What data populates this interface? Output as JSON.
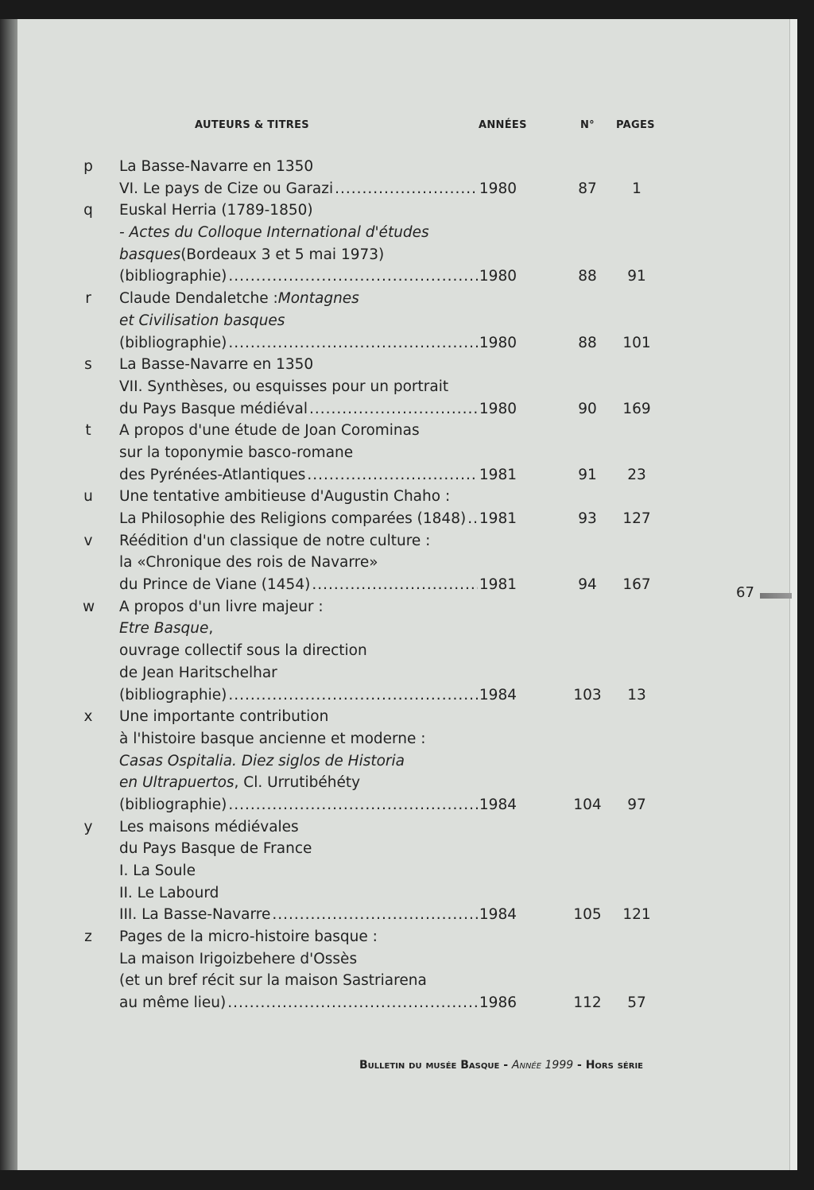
{
  "header": {
    "authors_titles": "AUTEURS & TITRES",
    "years": "ANNÉES",
    "number": "N°",
    "pages": "PAGES"
  },
  "entries": [
    {
      "letter": "p",
      "lines": [
        [
          {
            "t": "La Basse-Navarre en 1350"
          }
        ],
        [
          {
            "t": "VI. Le pays de Cize ou Garazi"
          }
        ]
      ],
      "year": "1980",
      "no": "87",
      "pages": "1"
    },
    {
      "letter": "q",
      "lines": [
        [
          {
            "t": "Euskal Herria (1789-1850)"
          }
        ],
        [
          {
            "t": "- Actes du Colloque International d'études",
            "i": true
          }
        ],
        [
          {
            "t": "basques",
            "i": true
          },
          {
            "t": " (Bordeaux 3 et 5 mai 1973)"
          }
        ],
        [
          {
            "t": "(bibliographie)"
          }
        ]
      ],
      "year": "1980",
      "no": "88",
      "pages": "91"
    },
    {
      "letter": "r",
      "lines": [
        [
          {
            "t": "Claude Dendaletche : "
          },
          {
            "t": "Montagnes",
            "i": true
          }
        ],
        [
          {
            "t": "et Civilisation basques",
            "i": true
          }
        ],
        [
          {
            "t": "(bibliographie)"
          }
        ]
      ],
      "year": "1980",
      "no": "88",
      "pages": "101"
    },
    {
      "letter": "s",
      "lines": [
        [
          {
            "t": "La Basse-Navarre en 1350"
          }
        ],
        [
          {
            "t": "VII. Synthèses, ou esquisses pour un portrait"
          }
        ],
        [
          {
            "t": "du Pays Basque médiéval"
          }
        ]
      ],
      "year": "1980",
      "no": "90",
      "pages": "169"
    },
    {
      "letter": "t",
      "lines": [
        [
          {
            "t": "A propos d'une étude de Joan Corominas"
          }
        ],
        [
          {
            "t": "sur la toponymie basco-romane"
          }
        ],
        [
          {
            "t": "des Pyrénées-Atlantiques"
          }
        ]
      ],
      "year": "1981",
      "no": "91",
      "pages": "23"
    },
    {
      "letter": "u",
      "lines": [
        [
          {
            "t": "Une tentative ambitieuse d'Augustin Chaho :"
          }
        ],
        [
          {
            "t": "La Philosophie des Religions comparées (1848)"
          }
        ]
      ],
      "year": "1981",
      "no": "93",
      "pages": "127"
    },
    {
      "letter": "v",
      "lines": [
        [
          {
            "t": "Réédition d'un classique de notre culture :"
          }
        ],
        [
          {
            "t": "la «Chronique des rois de Navarre»"
          }
        ],
        [
          {
            "t": "du Prince de Viane (1454)"
          }
        ]
      ],
      "year": "1981",
      "no": "94",
      "pages": "167"
    },
    {
      "letter": "w",
      "lines": [
        [
          {
            "t": "A propos d'un livre majeur :"
          }
        ],
        [
          {
            "t": "Etre Basque",
            "i": true
          },
          {
            "t": ","
          }
        ],
        [
          {
            "t": "ouvrage collectif sous la direction"
          }
        ],
        [
          {
            "t": "de Jean Haritschelhar"
          }
        ],
        [
          {
            "t": "(bibliographie)"
          }
        ]
      ],
      "year": "1984",
      "no": "103",
      "pages": "13"
    },
    {
      "letter": "x",
      "lines": [
        [
          {
            "t": "Une importante contribution"
          }
        ],
        [
          {
            "t": "à l'histoire basque ancienne et moderne :"
          }
        ],
        [
          {
            "t": "Casas Ospitalia. Diez siglos de Historia",
            "i": true
          }
        ],
        [
          {
            "t": "en Ultrapuertos",
            "i": true
          },
          {
            "t": ", Cl. Urrutibéhéty"
          }
        ],
        [
          {
            "t": "(bibliographie)"
          }
        ]
      ],
      "year": "1984",
      "no": "104",
      "pages": "97"
    },
    {
      "letter": "y",
      "lines": [
        [
          {
            "t": "Les maisons médiévales"
          }
        ],
        [
          {
            "t": "du Pays Basque de France"
          }
        ],
        [
          {
            "t": "I. La Soule"
          }
        ],
        [
          {
            "t": "II. Le Labourd"
          }
        ],
        [
          {
            "t": "III. La Basse-Navarre"
          }
        ]
      ],
      "year": "1984",
      "no": "105",
      "pages": "121"
    },
    {
      "letter": "z",
      "lines": [
        [
          {
            "t": "Pages de la micro-histoire basque :"
          }
        ],
        [
          {
            "t": "La maison Irigoizbehere d'Ossès"
          }
        ],
        [
          {
            "t": "(et un bref récit sur la maison Sastriarena"
          }
        ],
        [
          {
            "t": "au même lieu)"
          }
        ]
      ],
      "year": "1986",
      "no": "112",
      "pages": "57"
    }
  ],
  "page_number": "67",
  "footer": {
    "title": "Bulletin du musée Basque",
    "sep1": " - ",
    "year": "Année 1999",
    "sep2": " - ",
    "series": "Hors série"
  }
}
